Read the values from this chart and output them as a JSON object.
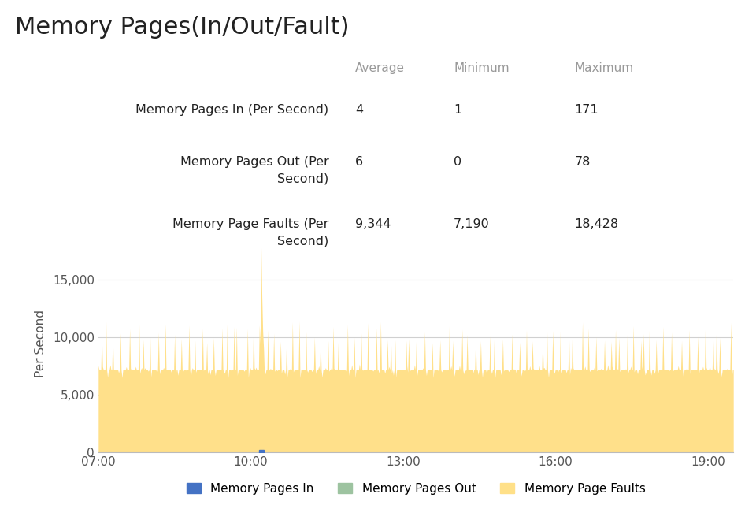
{
  "title": "Memory Pages(In/Out/Fault)",
  "title_fontsize": 22,
  "ylabel": "Per Second",
  "yticks": [
    0,
    5000,
    10000,
    15000
  ],
  "xtick_labels": [
    "07:00",
    "10:00",
    "13:00",
    "16:00",
    "19:00"
  ],
  "area_color": "#FFE08A",
  "legend_items": [
    {
      "label": "Memory Pages In",
      "color": "#4472C4"
    },
    {
      "label": "Memory Pages Out",
      "color": "#9DC3A0"
    },
    {
      "label": "Memory Page Faults",
      "color": "#FFE088"
    }
  ],
  "dot_color": "#4472C4",
  "background_color": "#ffffff",
  "grid_color": "#d0d0d0",
  "header_color": "#999999",
  "text_color": "#222222",
  "ymax": 19000,
  "spike_value": 17800,
  "table_header_labels": [
    "Average",
    "Minimum",
    "Maximum"
  ],
  "table_row_labels": [
    "Memory Pages In (Per Second)",
    "Memory Pages Out (Per\nSecond)",
    "Memory Page Faults (Per\nSecond)"
  ],
  "table_avgs": [
    "4",
    "6",
    "9,344"
  ],
  "table_mins": [
    "1",
    "0",
    "7,190"
  ],
  "table_maxs": [
    "171",
    "78",
    "18,428"
  ]
}
